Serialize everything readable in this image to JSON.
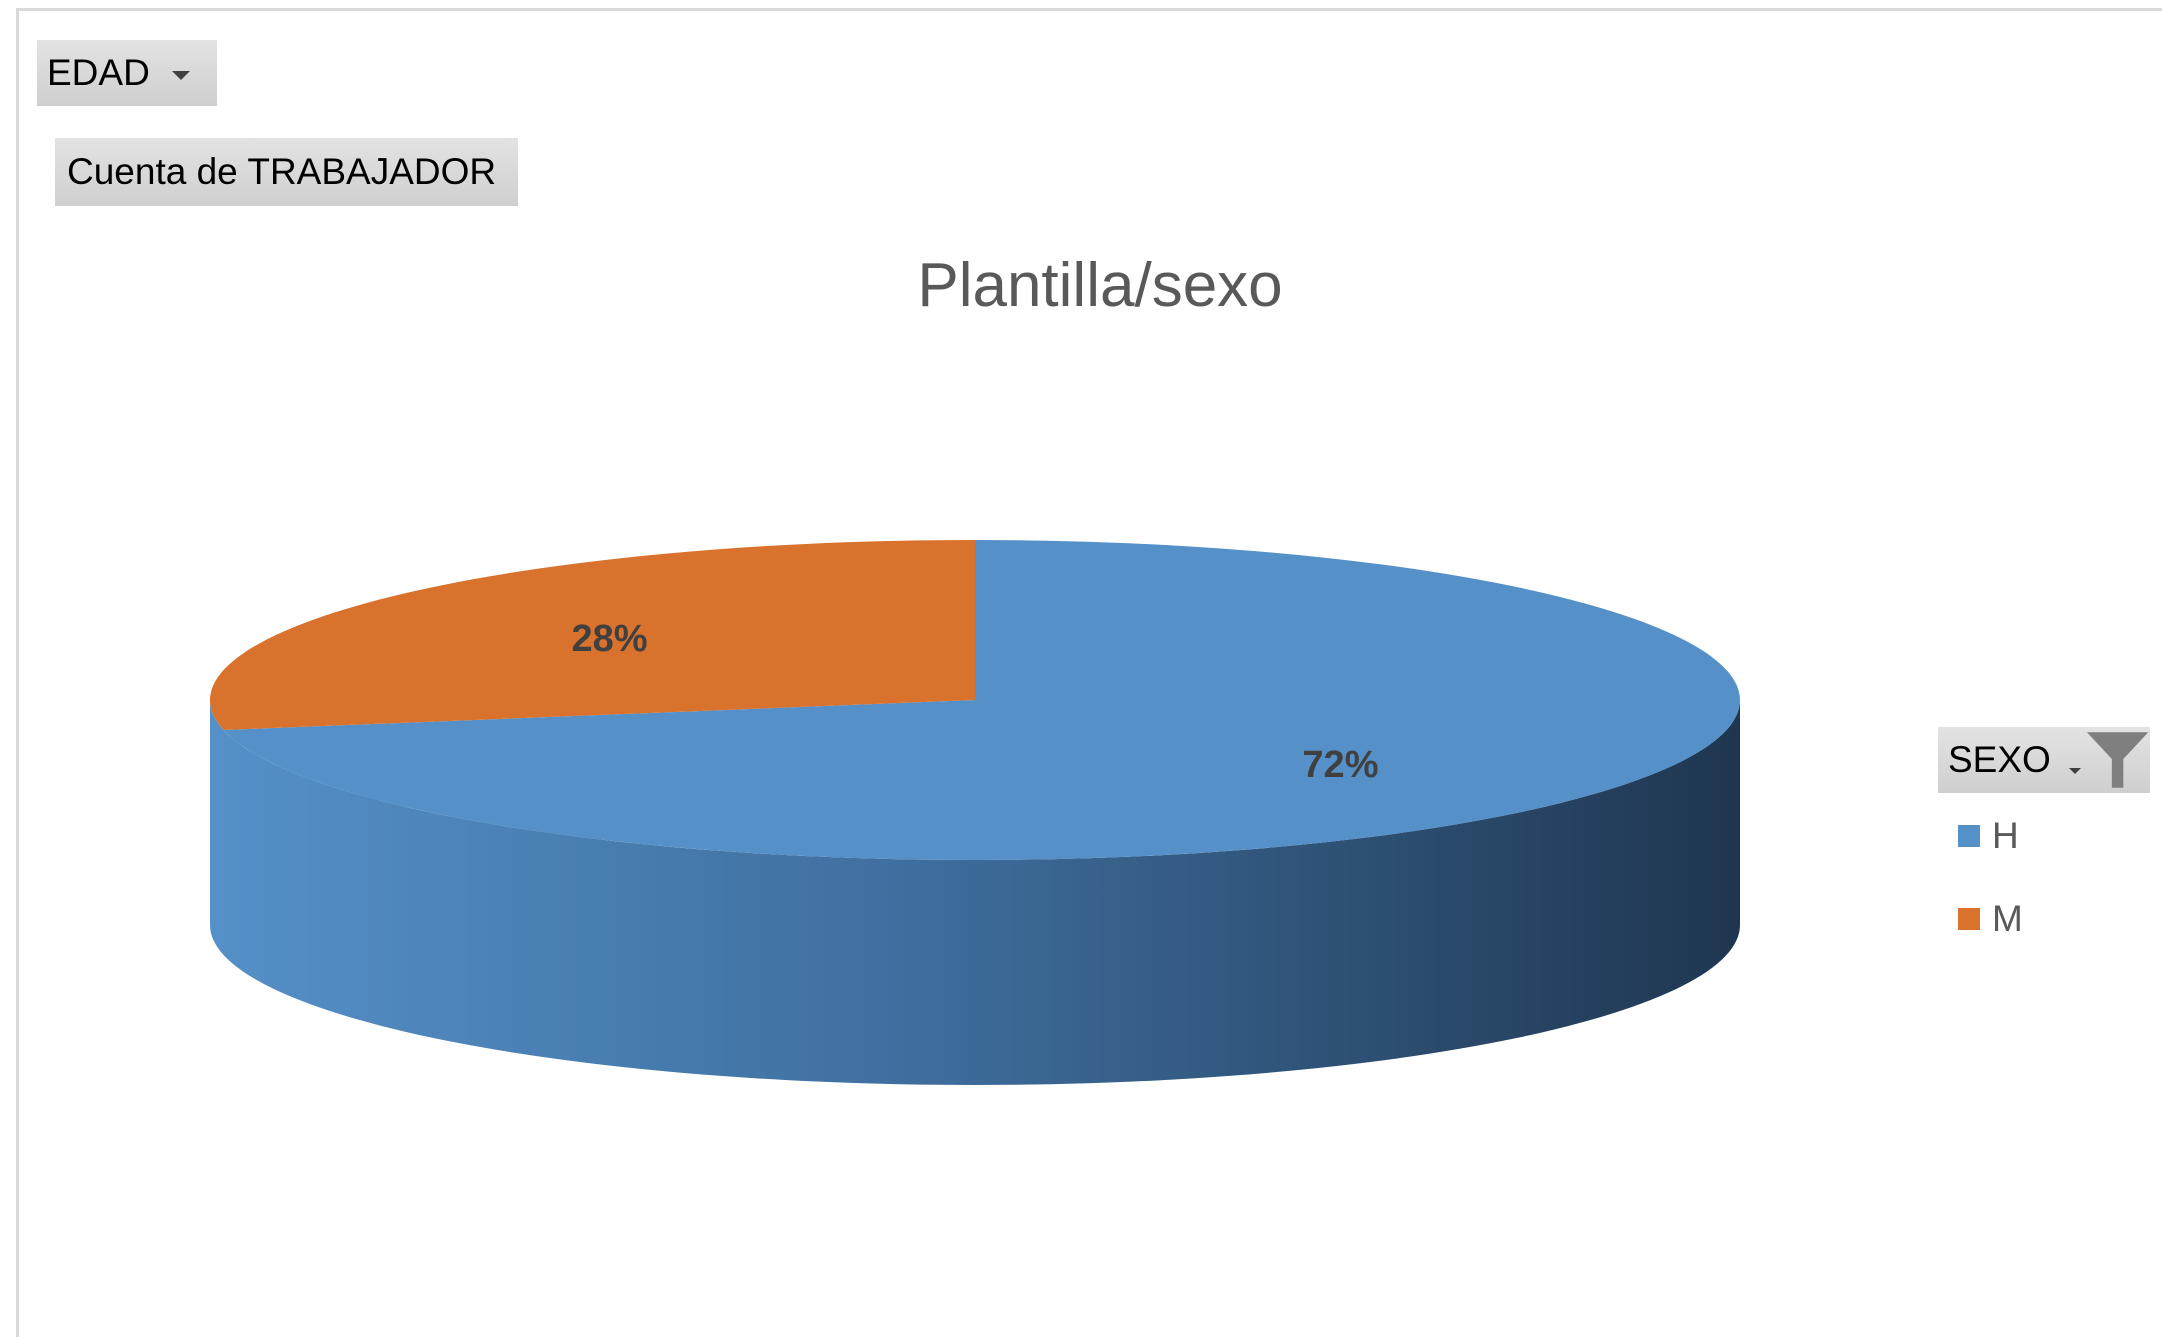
{
  "filters": {
    "edad_label": "EDAD",
    "value_field_label": "Cuenta de TRABAJADOR",
    "sexo_label": "SEXO"
  },
  "colors": {
    "H": "#5590c8",
    "M": "#d9722c"
  },
  "chart_data": {
    "type": "pie",
    "style": "3d",
    "title": "Plantilla/sexo",
    "categories": [
      "H",
      "M"
    ],
    "values": [
      72,
      28
    ],
    "data_labels": [
      "72%",
      "28%"
    ],
    "legend": {
      "title": "SEXO",
      "position": "right",
      "entries": [
        "H",
        "M"
      ]
    }
  }
}
